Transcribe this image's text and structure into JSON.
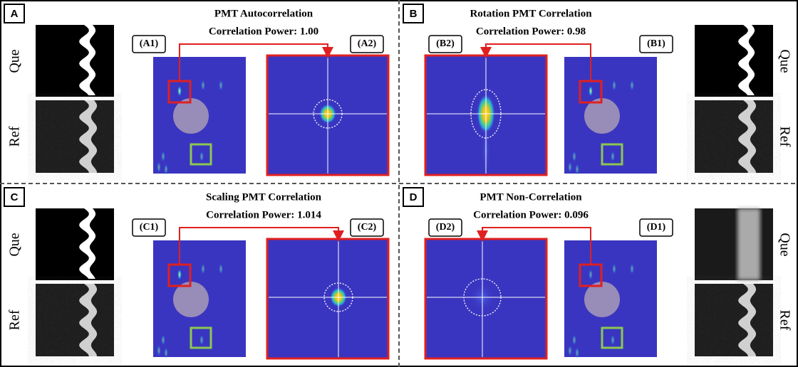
{
  "panels": [
    {
      "letter": "A",
      "title": "PMT Autocorrelation",
      "subtitle": "Correlation Power: 1.00",
      "map_label": "(A1)",
      "zoom_label": "(A2)",
      "query_label": "Que",
      "reference_label": "Ref"
    },
    {
      "letter": "B",
      "title": "Rotation PMT Correlation",
      "subtitle": "Correlation Power: 0.98",
      "map_label": "(B1)",
      "zoom_label": "(B2)",
      "query_label": "Que",
      "reference_label": "Ref"
    },
    {
      "letter": "C",
      "title": "Scaling PMT Correlation",
      "subtitle": "Correlation Power: 1.014",
      "map_label": "(C1)",
      "zoom_label": "(C2)",
      "query_label": "Que",
      "reference_label": "Ref"
    },
    {
      "letter": "D",
      "title": "PMT Non-Correlation",
      "subtitle": "Correlation Power: 0.096",
      "map_label": "(D1)",
      "zoom_label": "(D2)",
      "query_label": "Que",
      "reference_label": "Ref"
    }
  ]
}
